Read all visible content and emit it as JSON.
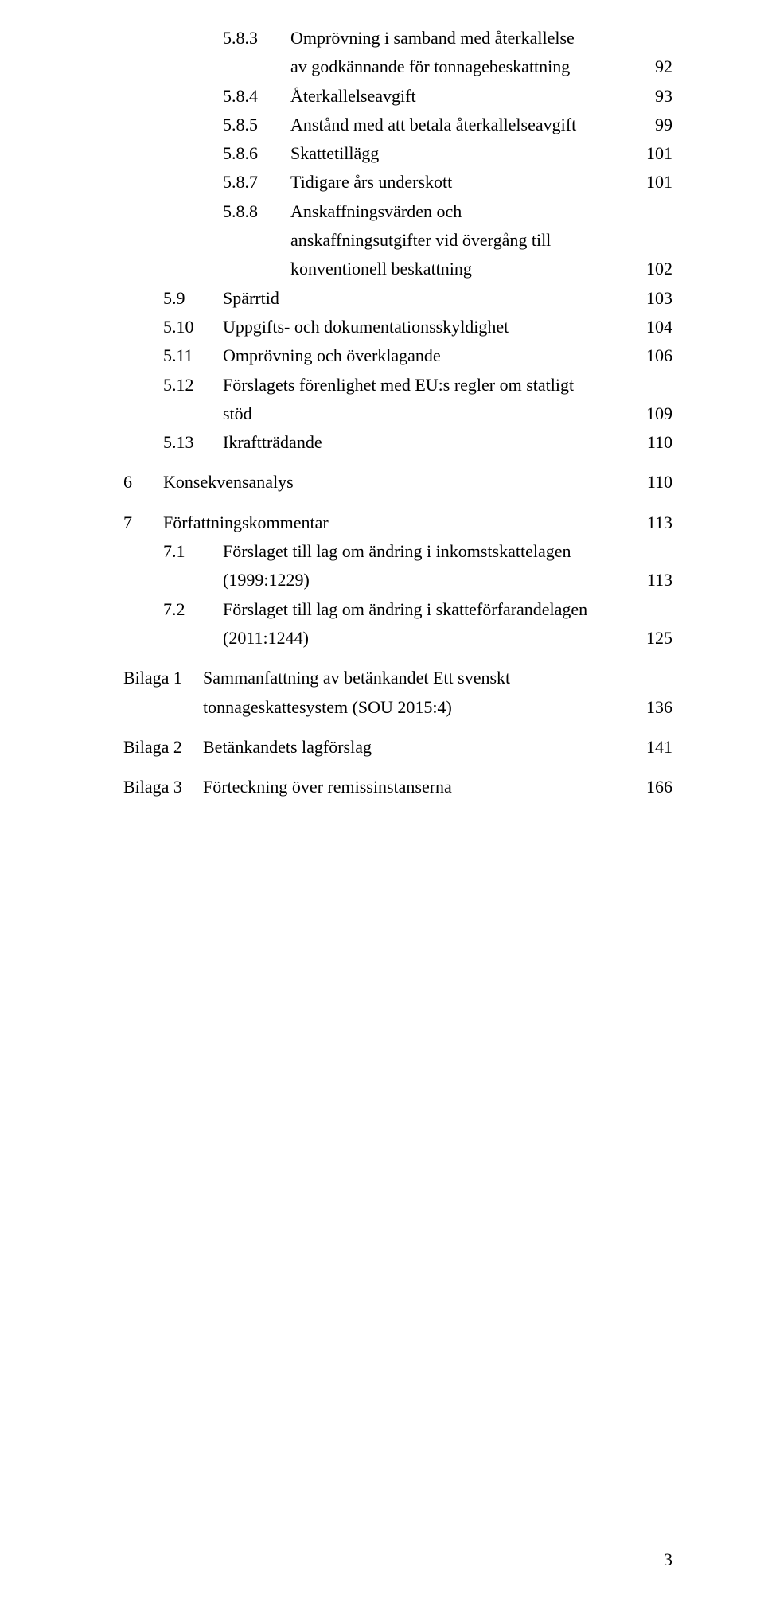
{
  "toc": {
    "items": [
      {
        "level": 3,
        "num": "5.8.3",
        "title_lines": [
          "Omprövning i samband med återkallelse",
          "av godkännande för tonnagebeskattning"
        ],
        "page": "92"
      },
      {
        "level": 3,
        "num": "5.8.4",
        "title_lines": [
          "Återkallelseavgift"
        ],
        "page": "93"
      },
      {
        "level": 3,
        "num": "5.8.5",
        "title_lines": [
          "Anstånd med att betala återkallelseavgift"
        ],
        "page": "99"
      },
      {
        "level": 3,
        "num": "5.8.6",
        "title_lines": [
          "Skattetillägg"
        ],
        "page": "101"
      },
      {
        "level": 3,
        "num": "5.8.7",
        "title_lines": [
          "Tidigare års underskott"
        ],
        "page": "101"
      },
      {
        "level": 3,
        "num": "5.8.8",
        "title_lines": [
          "Anskaffningsvärden och",
          "anskaffningsutgifter vid övergång till",
          "konventionell beskattning"
        ],
        "page": "102"
      },
      {
        "level": 2,
        "num": "5.9",
        "title_lines": [
          "Spärrtid"
        ],
        "page": "103"
      },
      {
        "level": 2,
        "num": "5.10",
        "title_lines": [
          "Uppgifts- och dokumentationsskyldighet"
        ],
        "page": "104"
      },
      {
        "level": 2,
        "num": "5.11",
        "title_lines": [
          "Omprövning och överklagande"
        ],
        "page": "106"
      },
      {
        "level": 2,
        "num": "5.12",
        "title_lines": [
          "Förslagets förenlighet med EU:s regler om statligt",
          "stöd"
        ],
        "page": "109"
      },
      {
        "level": 2,
        "num": "5.13",
        "title_lines": [
          "Ikraftträdande"
        ],
        "page": "110"
      },
      {
        "level": 1,
        "num": "6",
        "title_lines": [
          "Konsekvensanalys"
        ],
        "page": "110",
        "gap": "md"
      },
      {
        "level": 1,
        "num": "7",
        "title_lines": [
          "Författningskommentar"
        ],
        "page": "113",
        "gap": "md"
      },
      {
        "level": 2,
        "num": "7.1",
        "title_lines": [
          "Förslaget till lag om ändring i inkomstskattelagen",
          "(1999:1229)"
        ],
        "page": "113"
      },
      {
        "level": 2,
        "num": "7.2",
        "title_lines": [
          "Förslaget till lag om ändring i skatteförfarandelagen",
          "(2011:1244)"
        ],
        "page": "125"
      },
      {
        "level": "bilaga",
        "num": "Bilaga 1",
        "title_lines": [
          "Sammanfattning av betänkandet Ett svenskt",
          "tonnageskattesystem (SOU 2015:4)"
        ],
        "page": "136",
        "gap": "md"
      },
      {
        "level": "bilaga",
        "num": "Bilaga 2",
        "title_lines": [
          "Betänkandets lagförslag"
        ],
        "page": "141",
        "gap": "md"
      },
      {
        "level": "bilaga",
        "num": "Bilaga 3",
        "title_lines": [
          "Förteckning över remissinstanserna"
        ],
        "page": "166",
        "gap": "md"
      }
    ]
  },
  "page_number": "3"
}
